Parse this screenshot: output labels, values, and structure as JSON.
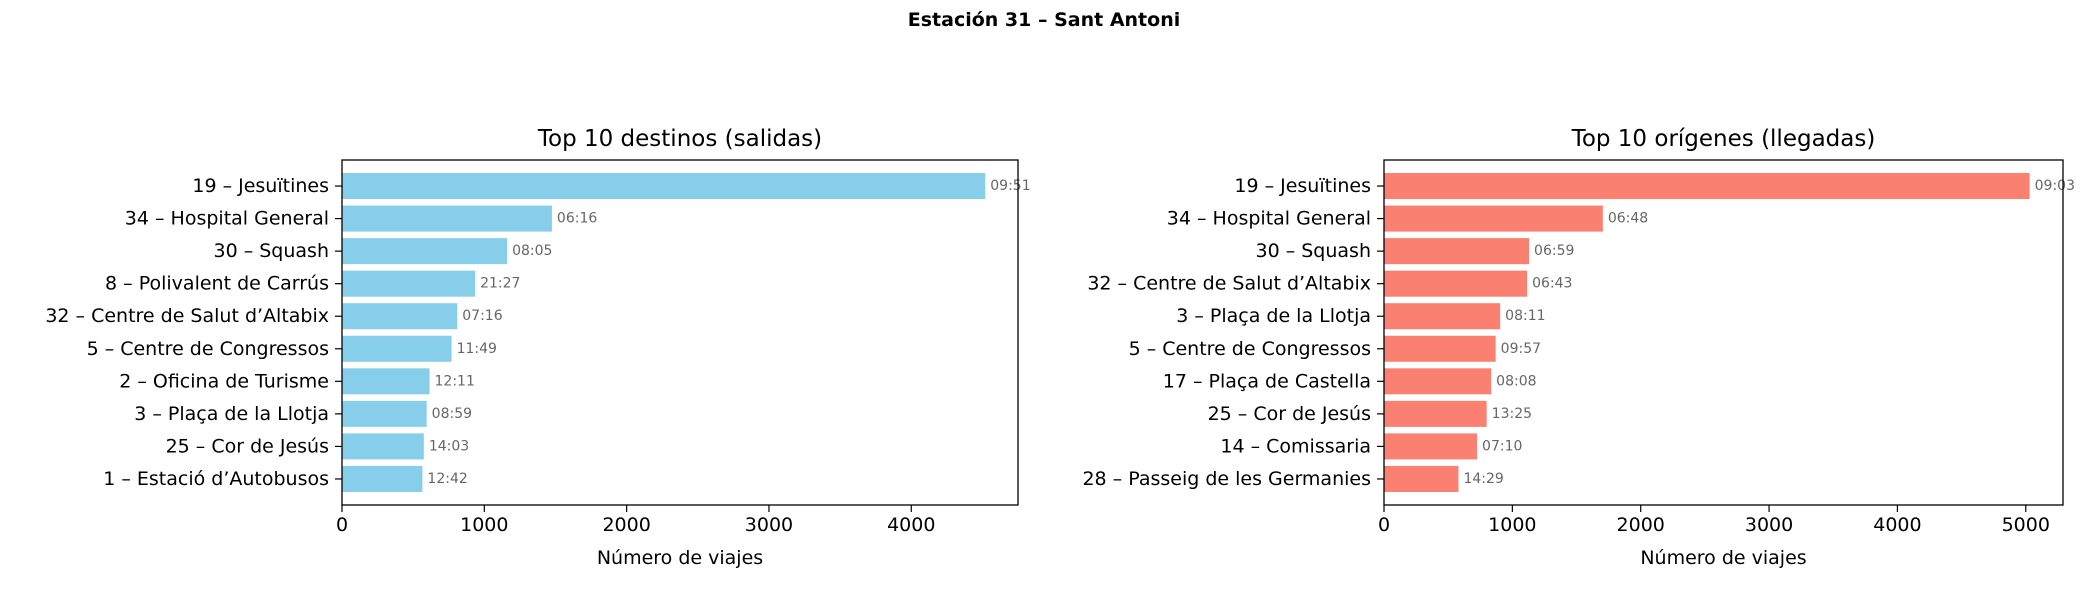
{
  "figure_title": "Estación 31 – Sant Antoni",
  "colors": {
    "left_bars": "#87ceeb",
    "right_bars": "#fa8072",
    "axes": "#000000",
    "annotation": "#666666"
  },
  "chart_data": [
    {
      "type": "bar",
      "orientation": "horizontal",
      "title": "Top 10 destinos (salidas)",
      "xlabel": "Número de viajes",
      "ylabel": "",
      "xlim": [
        0,
        4750
      ],
      "xticks": [
        0,
        1000,
        2000,
        3000,
        4000
      ],
      "categories": [
        "19 – Jesuïtines",
        "34 – Hospital General",
        "30 – Squash",
        "8 – Polivalent de Carrús",
        "32 – Centre de Salut d’Altabix",
        "5 – Centre de Congressos",
        "2 – Oficina de Turisme",
        "3 – Plaça de la Llotja",
        "25 – Cor de Jesús",
        "1 – Estació d’Autobusos"
      ],
      "values": [
        4520,
        1475,
        1160,
        935,
        810,
        770,
        615,
        595,
        575,
        565
      ],
      "annotations": [
        "09:51",
        "06:16",
        "08:05",
        "21:27",
        "07:16",
        "11:49",
        "12:11",
        "08:59",
        "14:03",
        "12:42"
      ],
      "color": "#87ceeb"
    },
    {
      "type": "bar",
      "orientation": "horizontal",
      "title": "Top 10 orígenes (llegadas)",
      "xlabel": "Número de viajes",
      "ylabel": "",
      "xlim": [
        0,
        5290
      ],
      "xticks": [
        0,
        1000,
        2000,
        3000,
        4000,
        5000
      ],
      "categories": [
        "19 – Jesuïtines",
        "34 – Hospital General",
        "30 – Squash",
        "32 – Centre de Salut d’Altabix",
        "3 – Plaça de la Llotja",
        "5 – Centre de Congressos",
        "17 – Plaça de Castella",
        "25 – Cor de Jesús",
        "14 – Comissaria",
        "28 – Passeig de les Germanies"
      ],
      "values": [
        5030,
        1705,
        1130,
        1115,
        905,
        870,
        835,
        800,
        725,
        580
      ],
      "annotations": [
        "09:03",
        "06:48",
        "06:59",
        "06:43",
        "08:11",
        "09:57",
        "08:08",
        "13:25",
        "07:10",
        "14:29"
      ],
      "color": "#fa8072"
    }
  ]
}
